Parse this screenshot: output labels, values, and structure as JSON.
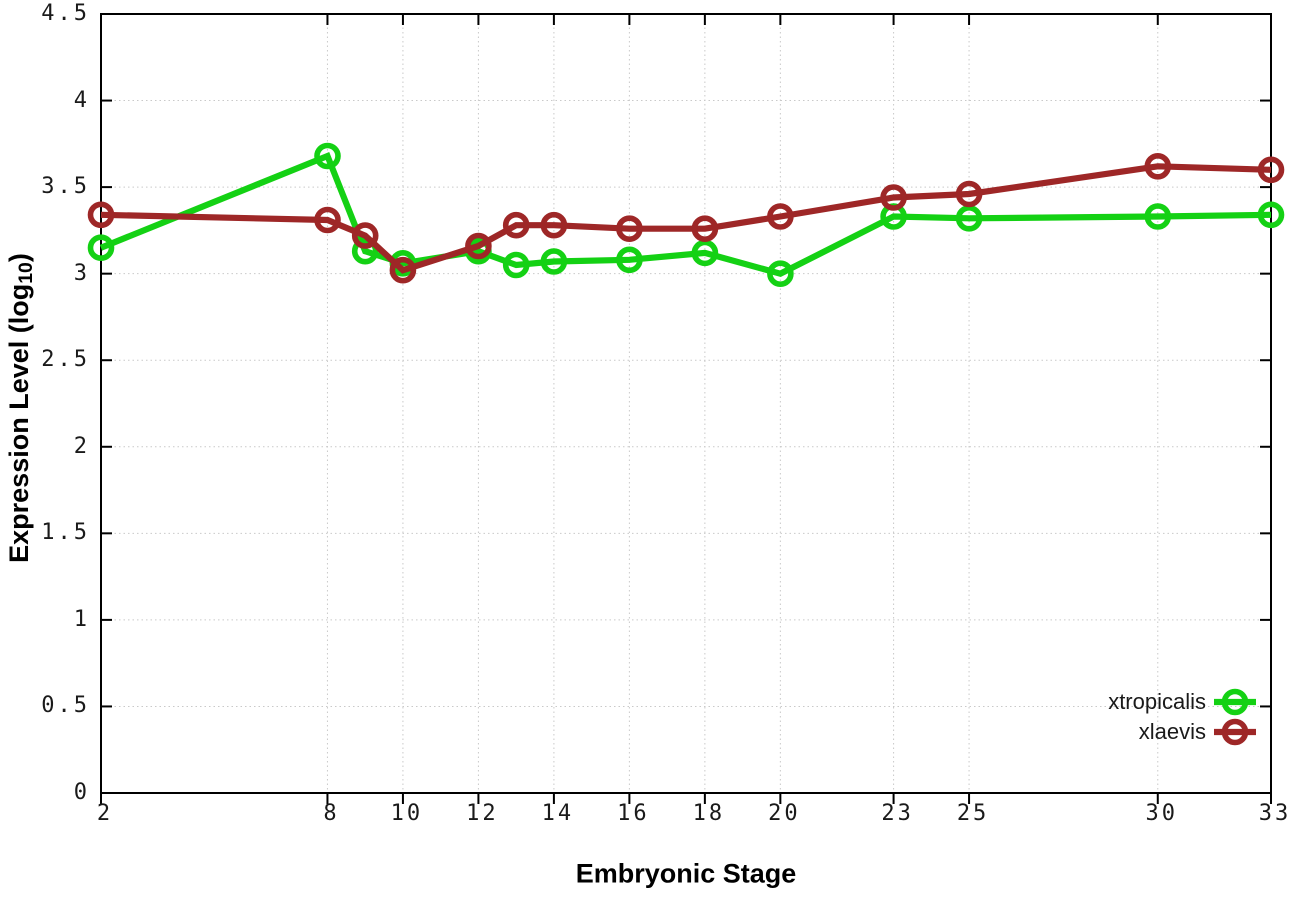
{
  "chart_data": {
    "type": "line",
    "title": "",
    "xlabel": "Embryonic Stage",
    "ylabel": "Expression Level (log10)",
    "ylabel_parts": {
      "base": "Expression Level (log",
      "sub": "10",
      "close": ")"
    },
    "x": [
      2,
      8,
      9,
      10,
      12,
      13,
      14,
      16,
      18,
      20,
      23,
      25,
      30,
      33
    ],
    "series": [
      {
        "name": "xtropicalis",
        "color": "#14d114",
        "values": [
          3.15,
          3.68,
          3.13,
          3.06,
          3.13,
          3.05,
          3.07,
          3.08,
          3.12,
          3.0,
          3.33,
          3.32,
          3.33,
          3.34
        ]
      },
      {
        "name": "xlaevis",
        "color": "#9e2727",
        "values": [
          3.34,
          3.31,
          3.22,
          3.02,
          3.16,
          3.28,
          3.28,
          3.26,
          3.26,
          3.33,
          3.44,
          3.46,
          3.62,
          3.6
        ]
      }
    ],
    "xlim": [
      2,
      33
    ],
    "ylim": [
      0,
      4.5
    ],
    "x_tick_values": [
      2,
      8,
      10,
      12,
      14,
      16,
      18,
      20,
      23,
      25,
      30,
      33
    ],
    "x_tick_labels": [
      "2",
      "8",
      "10",
      "12",
      "14",
      "16",
      "18",
      "20",
      "23",
      "25",
      "30",
      "33"
    ],
    "y_tick_values": [
      0,
      0.5,
      1,
      1.5,
      2,
      2.5,
      3,
      3.5,
      4,
      4.5
    ],
    "y_tick_labels": [
      "0",
      "0.5",
      "1",
      "1.5",
      "2",
      "2.5",
      "3",
      "3.5",
      "4",
      "4.5"
    ],
    "grid": true,
    "legend_position": "bottom-right",
    "colors": {
      "grid": "#c9c9c9",
      "axis": "#000000",
      "tick_text": "#1a1a1a"
    }
  }
}
